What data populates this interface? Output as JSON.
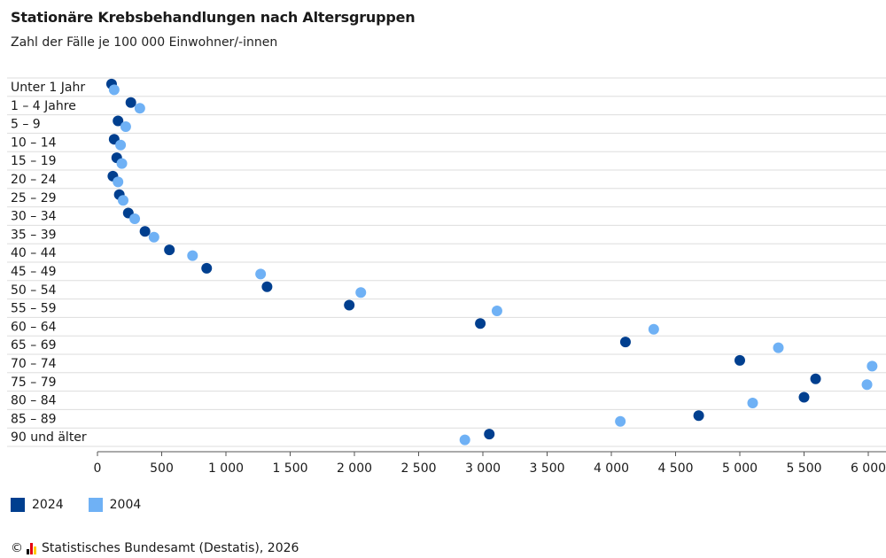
{
  "header": {
    "title": "Stationäre Krebsbehandlungen nach Altersgruppen",
    "subtitle": "Zahl der Fälle je 100 000 Einwohner/-innen"
  },
  "footer": {
    "copyright_symbol": "©",
    "source": "Statistisches Bundesamt (Destatis), 2026"
  },
  "colors": {
    "series_2024": "#003f8f",
    "series_2004": "#6fb1f5",
    "grid": "#dddddd",
    "axis": "#555555"
  },
  "chart_data": {
    "type": "scatter",
    "title": "Stationäre Krebsbehandlungen nach Altersgruppen",
    "subtitle": "Zahl der Fälle je 100 000 Einwohner/-innen",
    "categories": [
      "Unter 1 Jahr",
      "1 – 4 Jahre",
      "5 – 9",
      "10 – 14",
      "15 – 19",
      "20 – 24",
      "25 – 29",
      "30 – 34",
      "35 – 39",
      "40 – 44",
      "45 – 49",
      "50 – 54",
      "55 – 59",
      "60 – 64",
      "65 – 69",
      "70 – 74",
      "75 – 79",
      "80 – 84",
      "85 – 89",
      "90 und älter"
    ],
    "series": [
      {
        "name": "2024",
        "color": "#003f8f",
        "values": [
          110,
          260,
          160,
          130,
          150,
          120,
          170,
          240,
          370,
          560,
          850,
          1320,
          1960,
          2980,
          4110,
          5000,
          5590,
          5500,
          4680,
          3050
        ]
      },
      {
        "name": "2004",
        "color": "#6fb1f5",
        "values": [
          130,
          330,
          220,
          180,
          190,
          160,
          200,
          290,
          440,
          740,
          1270,
          2050,
          3110,
          4330,
          5300,
          6030,
          5990,
          5100,
          4070,
          2860
        ]
      }
    ],
    "xlim": [
      0,
      6000
    ],
    "xticks": [
      0,
      500,
      1000,
      1500,
      2000,
      2500,
      3000,
      3500,
      4000,
      4500,
      5000,
      5500,
      6000
    ],
    "xtick_labels": [
      "0",
      "500",
      "1 000",
      "1 500",
      "2 000",
      "2 500",
      "3 000",
      "3 500",
      "4 000",
      "4 500",
      "5 000",
      "5 500",
      "6 000"
    ],
    "xlabel": "",
    "ylabel": "",
    "grid": "horizontal",
    "legend_position": "bottom-left"
  }
}
